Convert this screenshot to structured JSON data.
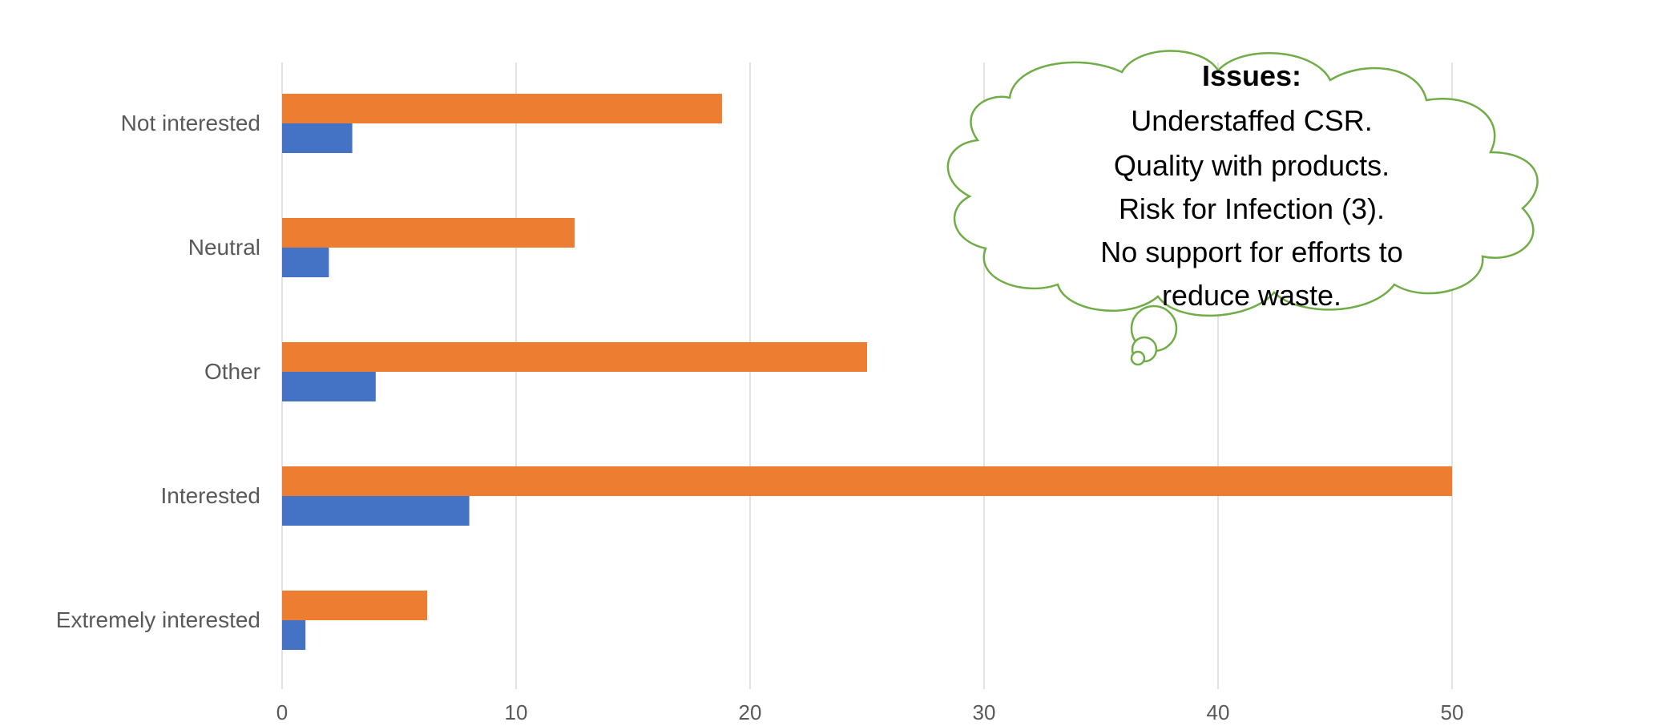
{
  "chart_data": {
    "type": "bar",
    "orientation": "horizontal",
    "categories": [
      "Not interested",
      "Neutral",
      "Other",
      "Interested",
      "Extremely interested"
    ],
    "series": [
      {
        "values": [
          18.8,
          12.5,
          25,
          50,
          6.2
        ],
        "color": "#ED7D31"
      },
      {
        "values": [
          3,
          2,
          4,
          8,
          1
        ],
        "color": "#4472C4"
      }
    ],
    "xlim": [
      0,
      55
    ],
    "xticks": [
      0,
      10,
      20,
      30,
      40,
      50
    ],
    "grid": true,
    "gridline_color": "#d9d9d9"
  },
  "callout": {
    "title": "Issues:",
    "lines": [
      "Understaffed CSR.",
      "Quality with products.",
      "Risk for Infection (3).",
      "No support for efforts to",
      "reduce waste."
    ],
    "border_color": "#70AD47"
  }
}
